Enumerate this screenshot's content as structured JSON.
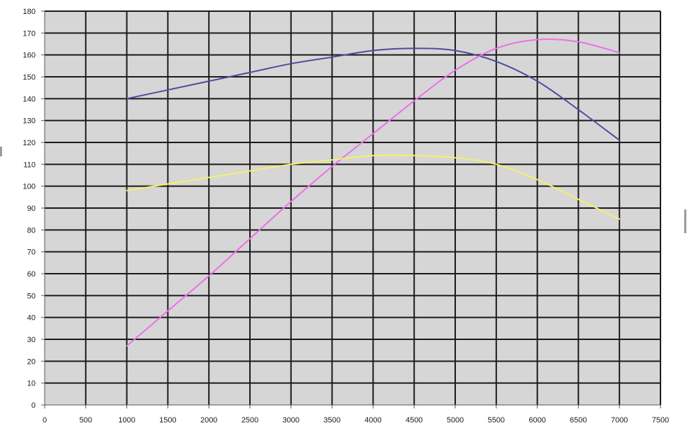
{
  "chart_data": {
    "type": "line",
    "title": "",
    "xlabel": "",
    "ylabel": "",
    "xlim": [
      0,
      7500
    ],
    "ylim": [
      0,
      180
    ],
    "x_ticks": [
      "0",
      "500",
      "1000",
      "1500",
      "2000",
      "2500",
      "3000",
      "3500",
      "4000",
      "4500",
      "5000",
      "5500",
      "6000",
      "6500",
      "7000",
      "7500"
    ],
    "y_ticks": [
      "0",
      "10",
      "20",
      "30",
      "40",
      "50",
      "60",
      "70",
      "80",
      "90",
      "100",
      "110",
      "120",
      "130",
      "140",
      "150",
      "160",
      "170",
      "180"
    ],
    "grid": true,
    "background": "#d6d6d6",
    "gridline_color": "#1a1a1a",
    "x": [
      1000,
      1500,
      2000,
      2500,
      3000,
      3500,
      4000,
      4500,
      5000,
      5500,
      6000,
      6500,
      7000
    ],
    "series": [
      {
        "color": "#4b4ba0",
        "values": [
          140,
          144,
          148,
          152,
          156,
          159,
          162,
          163,
          162,
          157,
          148,
          135,
          121
        ]
      },
      {
        "color": "#ec6fec",
        "values": [
          27,
          43,
          59,
          76,
          93,
          109,
          124,
          139,
          153,
          163,
          167,
          166,
          161
        ]
      },
      {
        "color": "#f2f06c",
        "values": [
          98,
          101,
          104,
          107,
          110,
          112,
          114,
          114,
          113,
          110,
          103,
          94,
          85
        ]
      }
    ]
  }
}
